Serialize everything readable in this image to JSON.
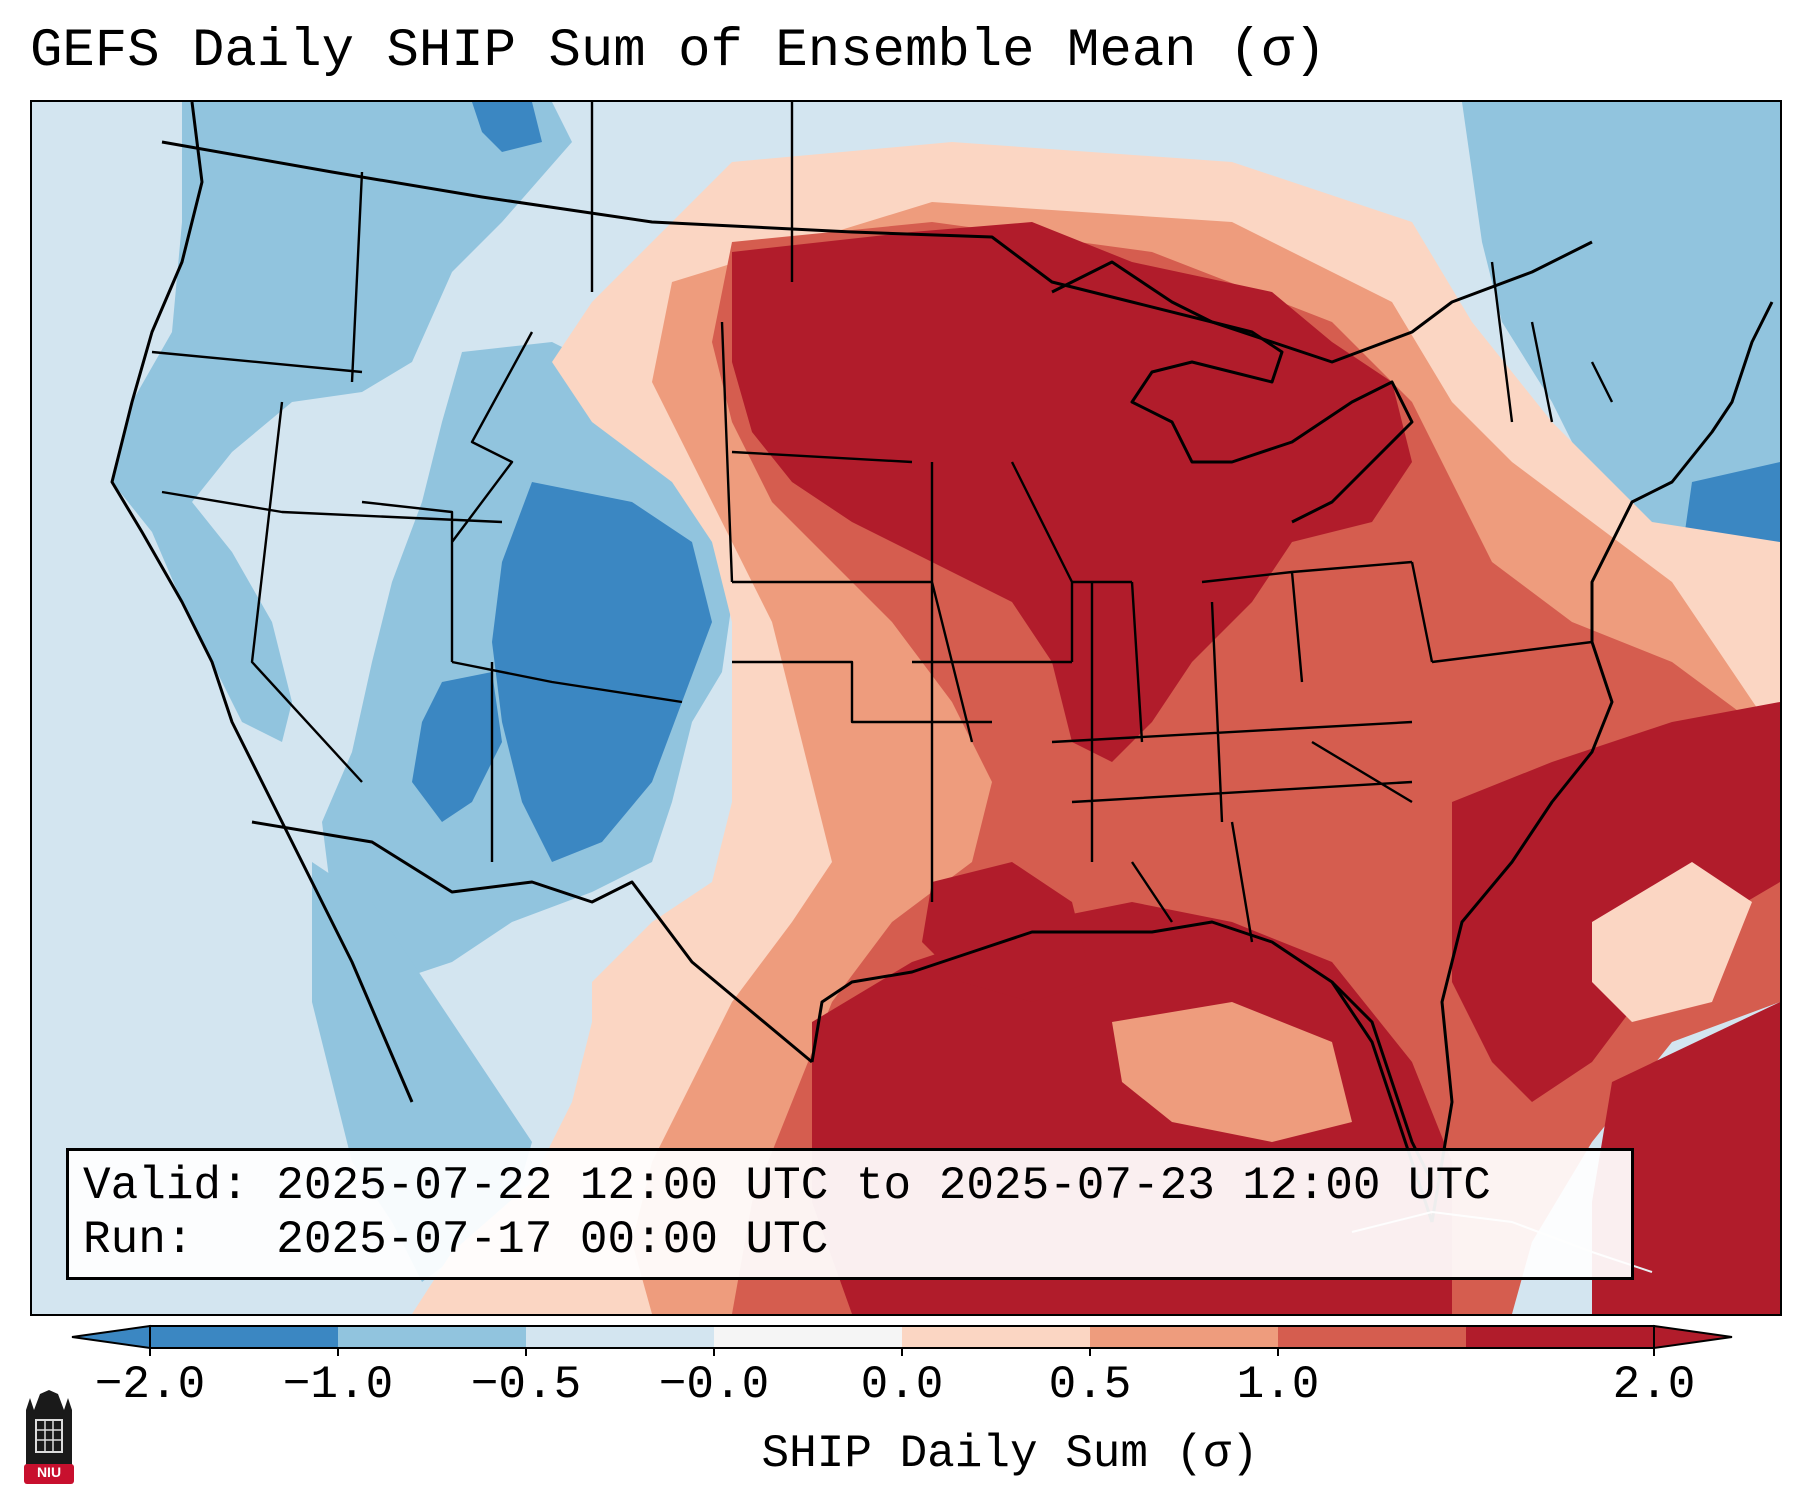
{
  "title": "GEFS Daily SHIP Sum of Ensemble Mean (σ)",
  "info": {
    "valid_label": "Valid:",
    "valid_value": "2025-07-22 12:00 UTC to 2025-07-23 12:00 UTC",
    "run_label": "Run:",
    "run_value": "2025-07-17 00:00 UTC"
  },
  "colorbar": {
    "label": "SHIP Daily Sum (σ)",
    "ticks": [
      "−2.0",
      "−1.0",
      "−0.5",
      "−0.0",
      "0.0",
      "0.5",
      "1.0",
      "2.0"
    ],
    "colors": [
      "#3b87c2",
      "#91c4de",
      "#d3e5f0",
      "#f5f5f5",
      "#fbd6c3",
      "#ee9c7d",
      "#d55d4f",
      "#b11c2b"
    ],
    "extend": "both"
  },
  "map": {
    "projection": "Lambert Conformal (CONUS)",
    "variable": "SHIP daily sum, ensemble mean",
    "palette": {
      "strong_negative": "#3b87c2",
      "moderate_negative": "#91c4de",
      "weak_negative": "#d3e5f0",
      "neutral": "#f5f5f5",
      "weak_positive": "#fbd6c3",
      "moderate_positive": "#ee9c7d",
      "strong_positive": "#d55d4f",
      "very_strong_positive": "#b11c2b"
    }
  },
  "logo": {
    "text": "NIU",
    "color": "#c8102e"
  }
}
